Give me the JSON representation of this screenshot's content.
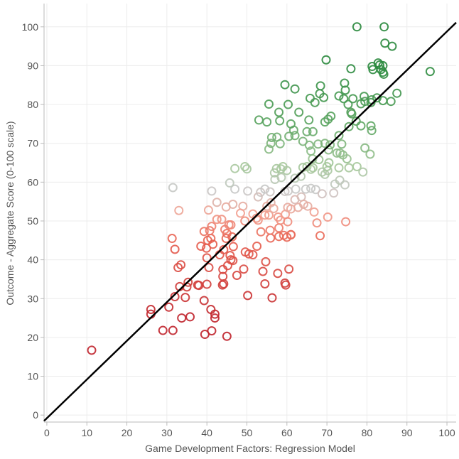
{
  "chart_data": {
    "type": "scatter",
    "title": "",
    "xlabel": "Game Development Factors: Regression Model",
    "ylabel": "Outcome - Aggregate Score (0-100 scale)",
    "xlim": [
      -0.7,
      102.3
    ],
    "ylim": [
      -1.8,
      106
    ],
    "xticks": [
      0,
      10,
      20,
      30,
      40,
      50,
      60,
      70,
      80,
      90,
      100
    ],
    "yticks": [
      0,
      10,
      20,
      30,
      40,
      50,
      60,
      70,
      80,
      90,
      100
    ],
    "grid": true,
    "marker": "hollow-circle",
    "color_scale": {
      "by": "y",
      "stops": [
        [
          25,
          "#c0242c"
        ],
        [
          45,
          "#e8604f"
        ],
        [
          52,
          "#f2a090"
        ],
        [
          58,
          "#c8c8c8"
        ],
        [
          64,
          "#a6c89b"
        ],
        [
          75,
          "#5aa45f"
        ],
        [
          90,
          "#2b8a3e"
        ]
      ]
    },
    "trend_line": {
      "points": [
        [
          -0.7,
          -1.5
        ],
        [
          102.3,
          101.1
        ]
      ],
      "color": "#000000"
    },
    "points": [
      [
        11.2,
        16.7
      ],
      [
        26,
        27.2
      ],
      [
        26,
        26
      ],
      [
        29,
        21.8
      ],
      [
        31.5,
        21.8
      ],
      [
        30.5,
        27.8
      ],
      [
        32,
        30.5
      ],
      [
        33.7,
        25
      ],
      [
        34.6,
        30.3
      ],
      [
        33.2,
        33.1
      ],
      [
        33.5,
        38.7
      ],
      [
        32.8,
        38
      ],
      [
        35,
        33
      ],
      [
        35.8,
        25.3
      ],
      [
        35.3,
        34.2
      ],
      [
        37.7,
        33.5
      ],
      [
        38,
        33.4
      ],
      [
        39.3,
        29.5
      ],
      [
        39.5,
        20.8
      ],
      [
        40,
        33.7
      ],
      [
        41,
        27.2
      ],
      [
        41.2,
        21.7
      ],
      [
        42,
        25
      ],
      [
        42,
        26
      ],
      [
        45,
        20.3
      ],
      [
        43.9,
        33.5
      ],
      [
        44.2,
        33.8
      ],
      [
        44,
        35.7
      ],
      [
        44,
        37.5
      ],
      [
        45.2,
        38.5
      ],
      [
        46,
        40
      ],
      [
        46.5,
        39.8
      ],
      [
        45.8,
        41.1
      ],
      [
        44.2,
        42.6
      ],
      [
        43.2,
        41.3
      ],
      [
        40,
        40.5
      ],
      [
        40.5,
        38
      ],
      [
        38.5,
        43.5
      ],
      [
        39.9,
        43
      ],
      [
        40.2,
        45
      ],
      [
        41,
        45.5
      ],
      [
        41.5,
        44
      ],
      [
        40.7,
        47.5
      ],
      [
        39.3,
        47.3
      ],
      [
        41.2,
        48.6
      ],
      [
        42.5,
        50.4
      ],
      [
        43.7,
        50.4
      ],
      [
        45,
        46.8
      ],
      [
        44.5,
        47.8
      ],
      [
        46,
        49
      ],
      [
        46.6,
        43.4
      ],
      [
        46.3,
        45.9
      ],
      [
        44.8,
        45.5
      ],
      [
        47.5,
        36
      ],
      [
        49.2,
        37.6
      ],
      [
        49.6,
        42
      ],
      [
        50.5,
        41.5
      ],
      [
        51.5,
        41.3
      ],
      [
        52.5,
        43.5
      ],
      [
        50.2,
        30.8
      ],
      [
        54,
        37
      ],
      [
        54.5,
        33.8
      ],
      [
        54.7,
        39.5
      ],
      [
        56.3,
        30.2
      ],
      [
        57.7,
        36.5
      ],
      [
        59.5,
        34
      ],
      [
        59.7,
        33.5
      ],
      [
        60.5,
        37.6
      ],
      [
        59.2,
        46.3
      ],
      [
        60,
        45.8
      ],
      [
        61,
        46.5
      ],
      [
        58,
        48.2
      ],
      [
        58,
        46
      ],
      [
        55.9,
        45.6
      ],
      [
        55.8,
        47.6
      ],
      [
        53.5,
        47.2
      ],
      [
        52.4,
        50.7
      ],
      [
        52.8,
        50.2
      ],
      [
        51.5,
        51.8
      ],
      [
        49,
        53.8
      ],
      [
        48.4,
        52
      ],
      [
        49.5,
        50
      ],
      [
        45.5,
        49
      ],
      [
        46.5,
        54.3
      ],
      [
        44.8,
        53.6
      ],
      [
        42.5,
        54.8
      ],
      [
        40.4,
        52.8
      ],
      [
        41.2,
        57.7
      ],
      [
        33,
        52.7
      ],
      [
        31.3,
        45.5
      ],
      [
        32,
        42.7
      ],
      [
        31.5,
        58.6
      ],
      [
        47,
        58.2
      ],
      [
        47,
        63.5
      ],
      [
        49.5,
        64
      ],
      [
        50,
        63.4
      ],
      [
        50.2,
        57.7
      ],
      [
        45.7,
        59.8
      ],
      [
        52.8,
        56.2
      ],
      [
        53.4,
        57.4
      ],
      [
        54.5,
        58.2
      ],
      [
        55.8,
        57.5
      ],
      [
        56,
        54.7
      ],
      [
        55,
        53.8
      ],
      [
        54.5,
        51.5
      ],
      [
        55.5,
        51.5
      ],
      [
        56.7,
        53.2
      ],
      [
        57.8,
        51
      ],
      [
        58.4,
        50.2
      ],
      [
        59.6,
        51.7
      ],
      [
        60.2,
        53.5
      ],
      [
        61,
        53.1
      ],
      [
        60.2,
        49.8
      ],
      [
        61,
        46.4
      ],
      [
        62.8,
        53.5
      ],
      [
        62,
        55.5
      ],
      [
        63.6,
        56.2
      ],
      [
        64.2,
        54.3
      ],
      [
        65.2,
        53.8
      ],
      [
        66.8,
        52.3
      ],
      [
        64.7,
        58.2
      ],
      [
        66,
        58.4
      ],
      [
        67.2,
        58.1
      ],
      [
        68.8,
        57
      ],
      [
        69.5,
        62
      ],
      [
        70.2,
        63
      ],
      [
        72,
        59.5
      ],
      [
        73.2,
        60.5
      ],
      [
        74.5,
        59.3
      ],
      [
        71.7,
        57.2
      ],
      [
        62.2,
        58.2
      ],
      [
        60.3,
        57.7
      ],
      [
        59.5,
        57.6
      ],
      [
        58.6,
        61.2
      ],
      [
        57,
        60.7
      ],
      [
        56.9,
        62.4
      ],
      [
        57.4,
        63.5
      ],
      [
        58.5,
        63.4
      ],
      [
        59,
        64
      ],
      [
        60,
        63
      ],
      [
        62,
        61
      ],
      [
        63.5,
        61.5
      ],
      [
        64,
        63.8
      ],
      [
        65,
        64
      ],
      [
        66,
        63.3
      ],
      [
        66.5,
        63.7
      ],
      [
        68,
        65.8
      ],
      [
        66.4,
        66
      ],
      [
        70,
        64
      ],
      [
        70.5,
        65
      ],
      [
        72.5,
        67.5
      ],
      [
        73.3,
        67.5
      ],
      [
        74,
        67
      ],
      [
        75,
        66
      ],
      [
        75.5,
        63.7
      ],
      [
        77.5,
        64
      ],
      [
        79,
        62.6
      ],
      [
        80.8,
        67.2
      ],
      [
        79.5,
        68.8
      ],
      [
        73,
        63.7
      ],
      [
        68.8,
        62.6
      ],
      [
        67.5,
        49.5
      ],
      [
        68.3,
        46.2
      ],
      [
        70.2,
        51
      ],
      [
        74.7,
        49.8
      ],
      [
        55.5,
        68.5
      ],
      [
        56,
        70
      ],
      [
        58.3,
        69.9
      ],
      [
        57.5,
        71.6
      ],
      [
        60.5,
        71.8
      ],
      [
        61.7,
        73.4
      ],
      [
        62,
        72
      ],
      [
        61,
        75
      ],
      [
        65,
        73
      ],
      [
        66.5,
        73
      ],
      [
        64,
        70.5
      ],
      [
        65.6,
        69.5
      ],
      [
        66,
        68
      ],
      [
        67.8,
        69.8
      ],
      [
        69.5,
        70
      ],
      [
        70.4,
        68.3
      ],
      [
        70.8,
        69.6
      ],
      [
        73,
        72
      ],
      [
        73.7,
        69.8
      ],
      [
        75.5,
        74.3
      ],
      [
        77.3,
        75.7
      ],
      [
        81,
        74.5
      ],
      [
        81.2,
        73.3
      ],
      [
        78.5,
        74.5
      ],
      [
        65.5,
        76
      ],
      [
        63,
        78
      ],
      [
        60.3,
        80
      ],
      [
        59.5,
        85.1
      ],
      [
        62,
        84
      ],
      [
        55.5,
        80.1
      ],
      [
        53,
        76
      ],
      [
        55,
        75.5
      ],
      [
        56.2,
        71.5
      ],
      [
        58.2,
        75.8
      ],
      [
        58,
        78
      ],
      [
        65.8,
        81.6
      ],
      [
        67,
        80.5
      ],
      [
        68.2,
        82.8
      ],
      [
        69.2,
        81.8
      ],
      [
        69.5,
        75.5
      ],
      [
        70.3,
        76.2
      ],
      [
        71,
        77
      ],
      [
        69.8,
        91.5
      ],
      [
        68.4,
        84.8
      ],
      [
        73,
        82.2
      ],
      [
        74.4,
        85.5
      ],
      [
        74.6,
        83.7
      ],
      [
        74.2,
        81.5
      ],
      [
        75.3,
        80
      ],
      [
        76.5,
        81.5
      ],
      [
        78.5,
        80.2
      ],
      [
        79.5,
        80.8
      ],
      [
        81,
        80.5
      ],
      [
        81.2,
        81.2
      ],
      [
        82.5,
        81.7
      ],
      [
        84,
        81
      ],
      [
        86,
        80.8
      ],
      [
        87.5,
        82.9
      ],
      [
        79.3,
        82.1
      ],
      [
        76.2,
        77.6
      ],
      [
        76,
        78
      ],
      [
        76,
        89.2
      ],
      [
        77.5,
        100
      ],
      [
        84.3,
        100
      ],
      [
        84.5,
        95.8
      ],
      [
        86.3,
        95
      ],
      [
        81.3,
        89.8
      ],
      [
        81.5,
        89
      ],
      [
        82.8,
        90.7
      ],
      [
        83.2,
        90.2
      ],
      [
        84,
        90
      ],
      [
        84,
        88.3
      ],
      [
        84.2,
        87.8
      ],
      [
        83.5,
        89
      ],
      [
        95.8,
        88.5
      ]
    ]
  }
}
